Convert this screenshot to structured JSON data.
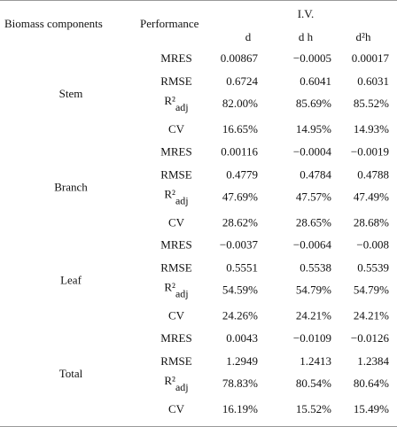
{
  "header": {
    "component": "Biomass components",
    "performance": "Performance",
    "group": "I.V.",
    "columns": [
      "d",
      "d h",
      "d²h"
    ]
  },
  "groups": [
    {
      "name": "Stem",
      "rows": [
        {
          "metric": "MRES",
          "values": [
            "0.00867",
            "−0.0005",
            "0.00017"
          ]
        },
        {
          "metric": "RMSE",
          "values": [
            "0.6724",
            "0.6041",
            "0.6031"
          ]
        },
        {
          "metric": {
            "base": "R²",
            "sub": "adj"
          },
          "values": [
            "82.00%",
            "85.69%",
            "85.52%"
          ]
        },
        {
          "metric": "CV",
          "values": [
            "16.65%",
            "14.95%",
            "14.93%"
          ]
        }
      ]
    },
    {
      "name": "Branch",
      "rows": [
        {
          "metric": "MRES",
          "values": [
            "0.00116",
            "−0.0004",
            "−0.0019"
          ]
        },
        {
          "metric": "RMSE",
          "values": [
            "0.4779",
            "0.4784",
            "0.4788"
          ]
        },
        {
          "metric": {
            "base": "R²",
            "sub": "adj"
          },
          "values": [
            "47.69%",
            "47.57%",
            "47.49%"
          ]
        },
        {
          "metric": "CV",
          "values": [
            "28.62%",
            "28.65%",
            "28.68%"
          ]
        }
      ]
    },
    {
      "name": "Leaf",
      "rows": [
        {
          "metric": "MRES",
          "values": [
            "−0.0037",
            "−0.0064",
            "−0.008"
          ]
        },
        {
          "metric": "RMSE",
          "values": [
            "0.5551",
            "0.5538",
            "0.5539"
          ]
        },
        {
          "metric": {
            "base": "R²",
            "sub": "adj"
          },
          "values": [
            "54.59%",
            "54.79%",
            "54.79%"
          ]
        },
        {
          "metric": "CV",
          "values": [
            "24.26%",
            "24.21%",
            "24.21%"
          ]
        }
      ]
    },
    {
      "name": "Total",
      "rows": [
        {
          "metric": "MRES",
          "values": [
            "0.0043",
            "−0.0109",
            "−0.0126"
          ]
        },
        {
          "metric": "RMSE",
          "values": [
            "1.2949",
            "1.2413",
            "1.2384"
          ]
        },
        {
          "metric": {
            "base": "R²",
            "sub": "adj"
          },
          "values": [
            "78.83%",
            "80.54%",
            "80.64%"
          ]
        },
        {
          "metric": "CV",
          "values": [
            "16.19%",
            "15.52%",
            "15.49%"
          ]
        }
      ]
    }
  ]
}
